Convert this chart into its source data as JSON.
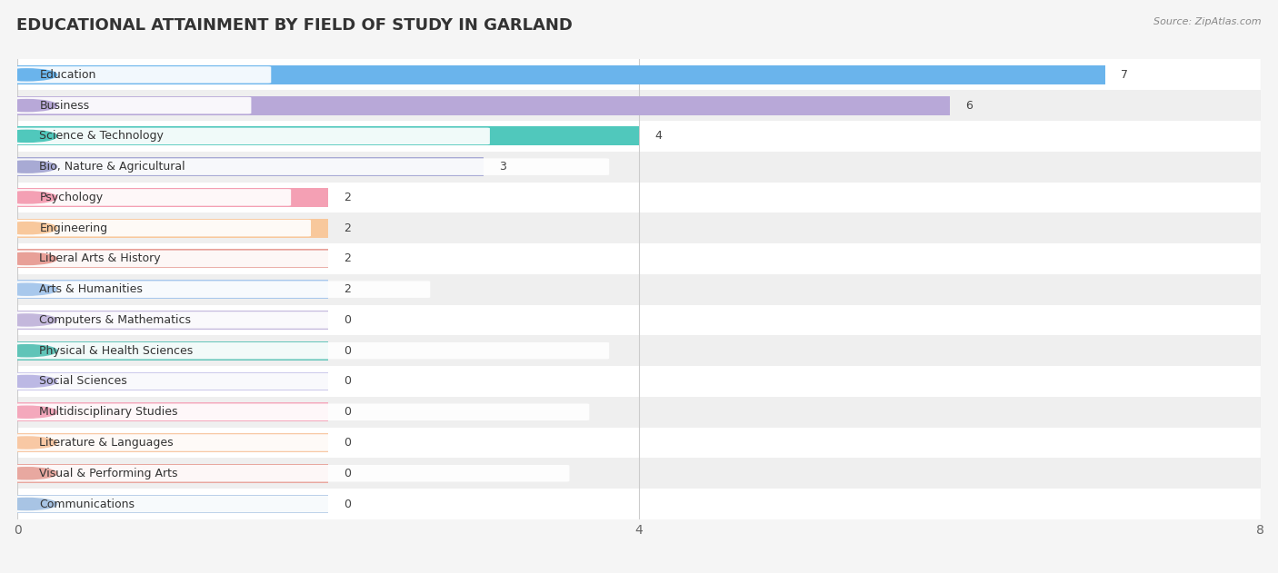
{
  "title": "EDUCATIONAL ATTAINMENT BY FIELD OF STUDY IN GARLAND",
  "source": "Source: ZipAtlas.com",
  "categories": [
    "Education",
    "Business",
    "Science & Technology",
    "Bio, Nature & Agricultural",
    "Psychology",
    "Engineering",
    "Liberal Arts & History",
    "Arts & Humanities",
    "Computers & Mathematics",
    "Physical & Health Sciences",
    "Social Sciences",
    "Multidisciplinary Studies",
    "Literature & Languages",
    "Visual & Performing Arts",
    "Communications"
  ],
  "values": [
    7,
    6,
    4,
    3,
    2,
    2,
    2,
    2,
    0,
    0,
    0,
    0,
    0,
    0,
    0
  ],
  "bar_colors": [
    "#6ab4ec",
    "#b8a8d8",
    "#50c8bc",
    "#a8aad4",
    "#f4a0b4",
    "#f8c89c",
    "#e8a098",
    "#a8c8ec",
    "#c4b8dc",
    "#60c4b8",
    "#bcb8e4",
    "#f4a8bc",
    "#f8c8a4",
    "#e8a8a0",
    "#a8c4e4"
  ],
  "zero_bar_width": 2.0,
  "xlim": [
    0,
    8
  ],
  "xticks": [
    0,
    4,
    8
  ],
  "background_color": "#f5f5f5",
  "row_colors": [
    "#ffffff",
    "#efefef"
  ],
  "title_fontsize": 13,
  "label_fontsize": 9,
  "value_fontsize": 9,
  "bar_height": 0.62
}
